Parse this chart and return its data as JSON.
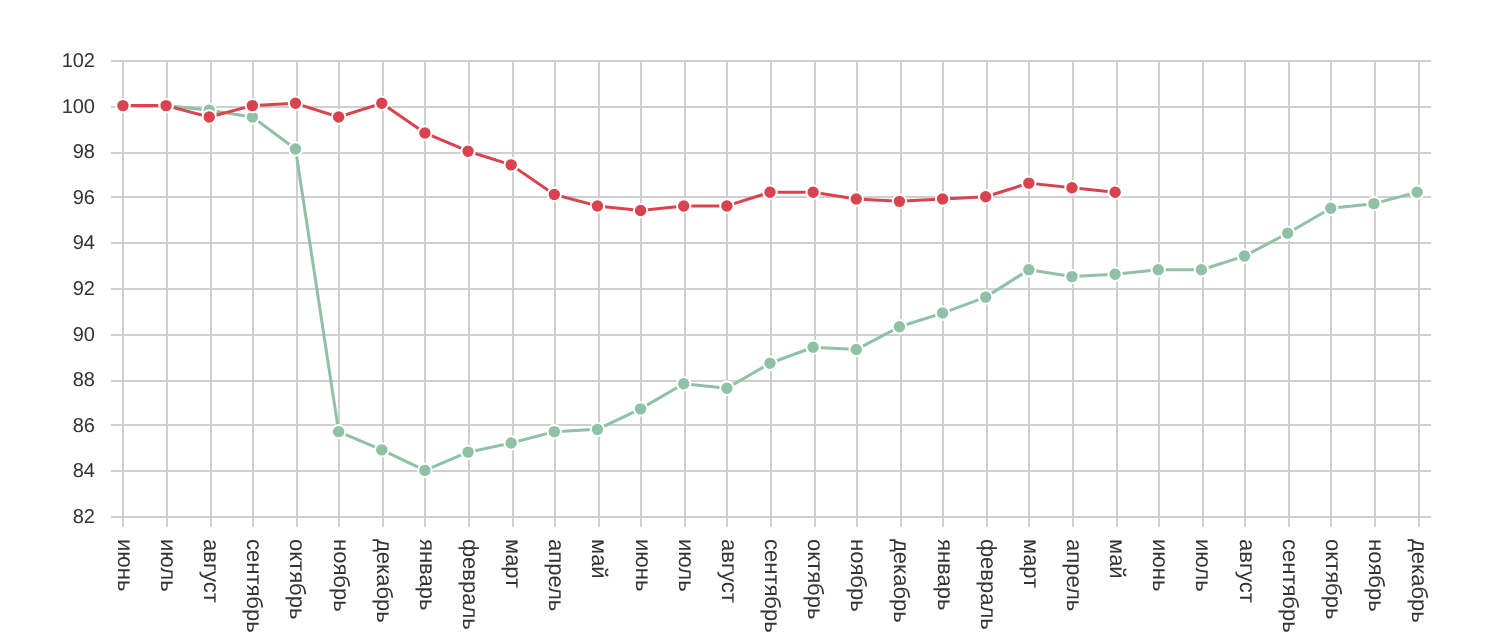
{
  "chart_data": {
    "type": "line",
    "categories": [
      "июнь",
      "июль",
      "август",
      "сентябрь",
      "октябрь",
      "ноябрь",
      "декабрь",
      "январь",
      "февраль",
      "март",
      "апрель",
      "май",
      "июнь",
      "июль",
      "август",
      "сентябрь",
      "октябрь",
      "ноябрь",
      "декабрь",
      "январь",
      "февраль",
      "март",
      "апрель",
      "май",
      "июнь",
      "июль",
      "август",
      "сентябрь",
      "октябрь",
      "ноябрь",
      "декабрь"
    ],
    "series": [
      {
        "color": "#8fc1a5",
        "values": [
          100,
          100,
          99.8,
          99.5,
          98.1,
          85.7,
          84.9,
          84.0,
          84.8,
          85.2,
          85.7,
          85.8,
          86.7,
          87.8,
          87.6,
          88.7,
          89.4,
          89.3,
          90.3,
          90.9,
          91.6,
          92.8,
          92.5,
          92.6,
          92.8,
          92.8,
          93.4,
          94.4,
          95.5,
          95.7,
          96.2
        ]
      },
      {
        "color": "#d9434f",
        "values": [
          100,
          100,
          99.5,
          100,
          100.1,
          99.5,
          100.1,
          98.8,
          98.0,
          97.4,
          96.1,
          95.6,
          95.4,
          95.6,
          95.6,
          96.2,
          96.2,
          95.9,
          95.8,
          95.9,
          96.0,
          96.6,
          96.4,
          96.2,
          null,
          null,
          null,
          null,
          null,
          null,
          null
        ]
      }
    ],
    "ylim": [
      82,
      102
    ],
    "yticks": [
      82,
      84,
      86,
      88,
      90,
      92,
      94,
      96,
      98,
      100,
      102
    ],
    "grid": true,
    "marker": "circle",
    "legend": false
  }
}
